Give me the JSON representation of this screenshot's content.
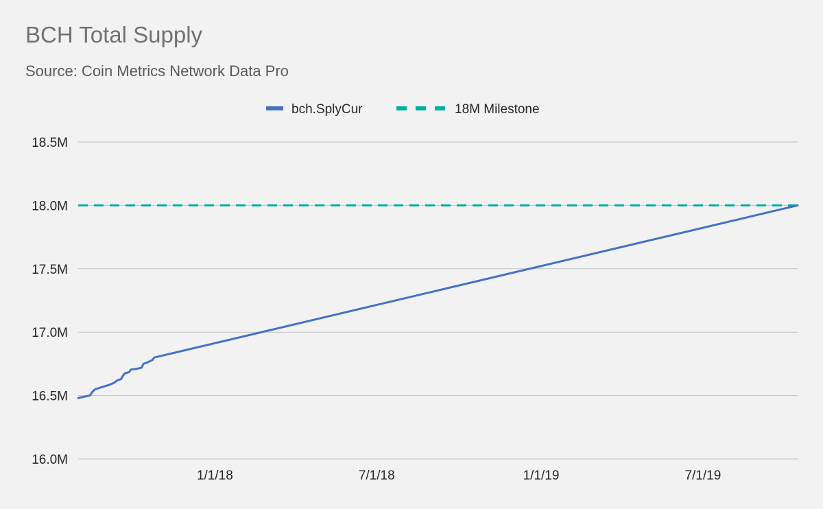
{
  "colors": {
    "background": "#f2f2f2",
    "gridline": "#bfbfbf",
    "supply_line": "#4472c4",
    "milestone_line": "#00b0a0"
  },
  "chart_data": {
    "type": "line",
    "title": "BCH Total Supply",
    "subtitle": "Source: Coin Metrics Network Data Pro",
    "legend_position": "top-center",
    "grid": true,
    "xlim": [
      "2017-08-01",
      "2019-10-15"
    ],
    "ylim": [
      16000000,
      18500000
    ],
    "x_ticks": [
      {
        "date": "2018-01-01",
        "label": "1/1/18"
      },
      {
        "date": "2018-07-01",
        "label": "7/1/18"
      },
      {
        "date": "2019-01-01",
        "label": "1/1/19"
      },
      {
        "date": "2019-07-01",
        "label": "7/1/19"
      }
    ],
    "y_ticks": [
      {
        "value": 16000000,
        "label": "16.0M"
      },
      {
        "value": 16500000,
        "label": "16.5M"
      },
      {
        "value": 17000000,
        "label": "17.0M"
      },
      {
        "value": 17500000,
        "label": "17.5M"
      },
      {
        "value": 18000000,
        "label": "18.0M"
      },
      {
        "value": 18500000,
        "label": "18.5M"
      }
    ],
    "series": [
      {
        "name": "bch.SplyCur",
        "color": "#4472c4",
        "style": "solid",
        "points": [
          [
            "2017-08-01",
            16480000
          ],
          [
            "2017-08-07",
            16490000
          ],
          [
            "2017-08-14",
            16500000
          ],
          [
            "2017-08-17",
            16530000
          ],
          [
            "2017-08-20",
            16550000
          ],
          [
            "2017-08-27",
            16565000
          ],
          [
            "2017-09-05",
            16585000
          ],
          [
            "2017-09-10",
            16600000
          ],
          [
            "2017-09-14",
            16620000
          ],
          [
            "2017-09-18",
            16630000
          ],
          [
            "2017-09-20",
            16655000
          ],
          [
            "2017-09-22",
            16675000
          ],
          [
            "2017-09-27",
            16685000
          ],
          [
            "2017-09-29",
            16705000
          ],
          [
            "2017-10-05",
            16710000
          ],
          [
            "2017-10-11",
            16720000
          ],
          [
            "2017-10-13",
            16750000
          ],
          [
            "2017-10-17",
            16760000
          ],
          [
            "2017-10-23",
            16780000
          ],
          [
            "2017-10-25",
            16800000
          ],
          [
            "2019-10-15",
            18000000
          ]
        ]
      },
      {
        "name": "18M Milestone",
        "color": "#00b0a0",
        "style": "dashed",
        "points": [
          [
            "2017-08-01",
            18000000
          ],
          [
            "2019-10-15",
            18000000
          ]
        ]
      }
    ]
  }
}
